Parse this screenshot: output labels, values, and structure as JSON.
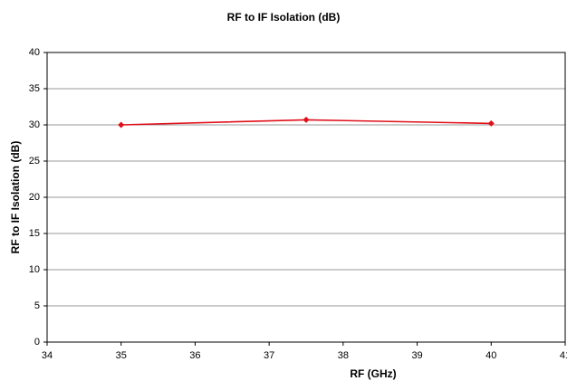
{
  "chart_data": {
    "type": "line",
    "title": "RF to IF Isolation (dB)",
    "x_label": "RF (GHz)",
    "y_label": "RF to IF Isolation (dB)",
    "x": [
      35,
      37.5,
      40
    ],
    "series": [
      {
        "name": "RF to IF Isolation",
        "color": "#e0101a",
        "values": [
          30,
          30.7,
          30.2
        ]
      }
    ],
    "xlim": [
      34,
      41
    ],
    "xticks": [
      34,
      35,
      36,
      37,
      38,
      39,
      40,
      41
    ],
    "ylim": [
      0,
      40
    ],
    "yticks": [
      0,
      5,
      10,
      15,
      20,
      25,
      30,
      35,
      40
    ],
    "grid": true
  }
}
